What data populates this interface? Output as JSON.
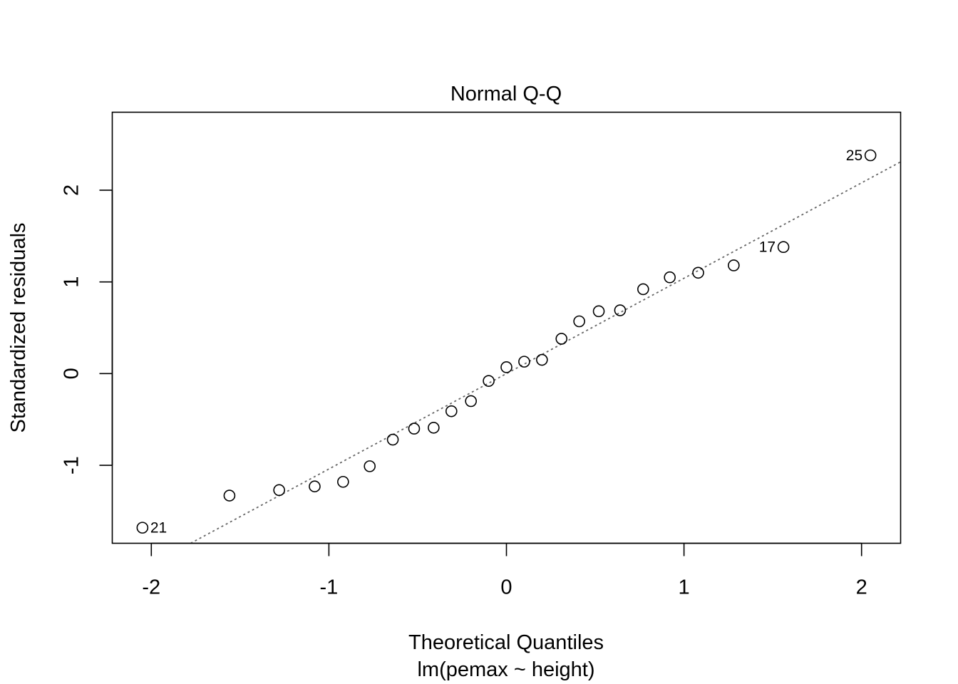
{
  "chart_data": {
    "type": "scatter",
    "title": "Normal Q-Q",
    "xlabel": "Theoretical Quantiles",
    "subtitle": "lm(pemax ~ height)",
    "ylabel": "Standardized residuals",
    "xlim": [
      -2.22,
      2.22
    ],
    "ylim": [
      -1.85,
      2.85
    ],
    "xticks": [
      -2,
      -1,
      0,
      1,
      2
    ],
    "yticks": [
      -1,
      0,
      1,
      2
    ],
    "xtick_labels": [
      "-2",
      "-1",
      "0",
      "1",
      "2"
    ],
    "ytick_labels": [
      "-1",
      "0",
      "1",
      "2"
    ],
    "grid": false,
    "reference_line": {
      "style": "dotted",
      "color": "#666666",
      "intercept": 0.0,
      "slope": 1.04
    },
    "points": [
      {
        "x": -2.05,
        "y": -1.68,
        "label": "21"
      },
      {
        "x": -1.56,
        "y": -1.33
      },
      {
        "x": -1.28,
        "y": -1.27
      },
      {
        "x": -1.08,
        "y": -1.23
      },
      {
        "x": -0.92,
        "y": -1.18
      },
      {
        "x": -0.77,
        "y": -1.01
      },
      {
        "x": -0.64,
        "y": -0.72
      },
      {
        "x": -0.52,
        "y": -0.6
      },
      {
        "x": -0.41,
        "y": -0.59
      },
      {
        "x": -0.31,
        "y": -0.41
      },
      {
        "x": -0.2,
        "y": -0.3
      },
      {
        "x": -0.1,
        "y": -0.08
      },
      {
        "x": 0.0,
        "y": 0.07
      },
      {
        "x": 0.1,
        "y": 0.13
      },
      {
        "x": 0.2,
        "y": 0.15
      },
      {
        "x": 0.31,
        "y": 0.38
      },
      {
        "x": 0.41,
        "y": 0.57
      },
      {
        "x": 0.52,
        "y": 0.68
      },
      {
        "x": 0.64,
        "y": 0.69
      },
      {
        "x": 0.77,
        "y": 0.92
      },
      {
        "x": 0.92,
        "y": 1.05
      },
      {
        "x": 1.08,
        "y": 1.1
      },
      {
        "x": 1.28,
        "y": 1.18
      },
      {
        "x": 1.56,
        "y": 1.38,
        "label": "17"
      },
      {
        "x": 2.05,
        "y": 2.38,
        "label": "25"
      }
    ]
  }
}
